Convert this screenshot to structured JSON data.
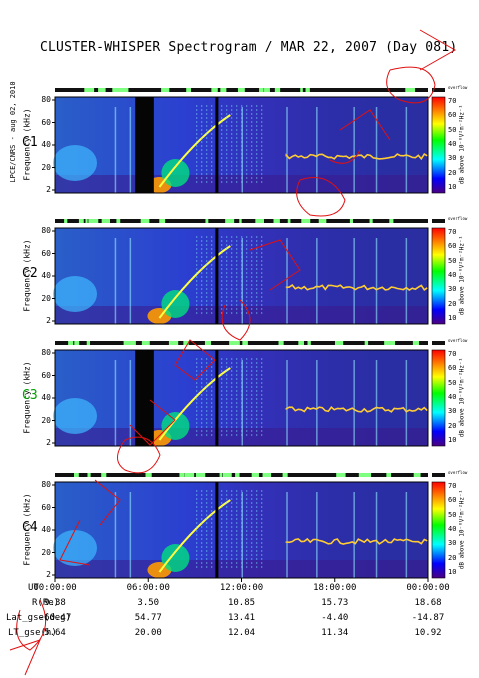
{
  "title": "CLUSTER-WHISPER Spectrogram / MAR 22, 2007 (Day 081)",
  "side_credit": "LPCE/CNRS - aug 02, 2010",
  "colorbar": {
    "title": "dB above 10⁻⁸V²m⁻²Hz⁻¹",
    "top_label": "overflow",
    "ticks": [
      "70",
      "60",
      "50",
      "40",
      "30",
      "20",
      "10"
    ],
    "colors": [
      "#ff0000",
      "#ff7f00",
      "#ffff00",
      "#00ff00",
      "#00ffff",
      "#0000ff",
      "#4b0082"
    ]
  },
  "panels": [
    {
      "label": "C1",
      "label_color": "#000000"
    },
    {
      "label": "C2",
      "label_color": "#000000"
    },
    {
      "label": "C3",
      "label_color": "#00a000"
    },
    {
      "label": "C4",
      "label_color": "#000000"
    }
  ],
  "chart_data": {
    "type": "heatmap",
    "title": "CLUSTER-WHISPER Spectrogram / MAR 22, 2007 (Day 081)",
    "ylabel": "Frequency (kHz)",
    "y_ticks": [
      "80",
      "60",
      "40",
      "20",
      "2"
    ],
    "ylim": [
      2,
      80
    ],
    "zlabel": "dB above 10⁻⁸V²m⁻²Hz⁻¹",
    "zlim": [
      10,
      70
    ],
    "z_ticks": [
      10,
      20,
      30,
      40,
      50,
      60,
      70
    ],
    "x_ticks": [
      "00:00:00",
      "06:00:00",
      "12:00:00",
      "18:00:00",
      "00:00:00"
    ],
    "series": [
      {
        "name": "C1"
      },
      {
        "name": "C2"
      },
      {
        "name": "C3"
      },
      {
        "name": "C4"
      }
    ],
    "ephemeris": {
      "row_labels": [
        "UT",
        "R(Re)",
        "Lat_gse(deg)",
        "LT_gse(h)"
      ],
      "times": [
        "00:00:00",
        "06:00:00",
        "12:00:00",
        "18:00:00",
        "00:00:00"
      ],
      "R(Re)": [
        9.38,
        3.5,
        10.85,
        15.73,
        18.68
      ],
      "Lat_gse(deg)": [
        -60.47,
        54.77,
        13.41,
        -4.4,
        -14.87
      ],
      "LT_gse(h)": [
        5.64,
        20.0,
        12.04,
        11.34,
        10.92
      ]
    }
  },
  "footer_rows": [
    {
      "label": "UT",
      "values": [
        "00:00:00",
        "06:00:00",
        "12:00:00",
        "18:00:00",
        "00:00:00"
      ]
    },
    {
      "label": "R(Re)",
      "values": [
        "9.38",
        "3.50",
        "10.85",
        "15.73",
        "18.68"
      ]
    },
    {
      "label": "Lat_gse(deg)",
      "values": [
        "-60.47",
        "54.77",
        "13.41",
        "-4.40",
        "-14.87"
      ]
    },
    {
      "label": "LT_gse(h)",
      "values": [
        "5.64",
        "20.00",
        "12.04",
        "11.34",
        "10.92"
      ]
    }
  ]
}
